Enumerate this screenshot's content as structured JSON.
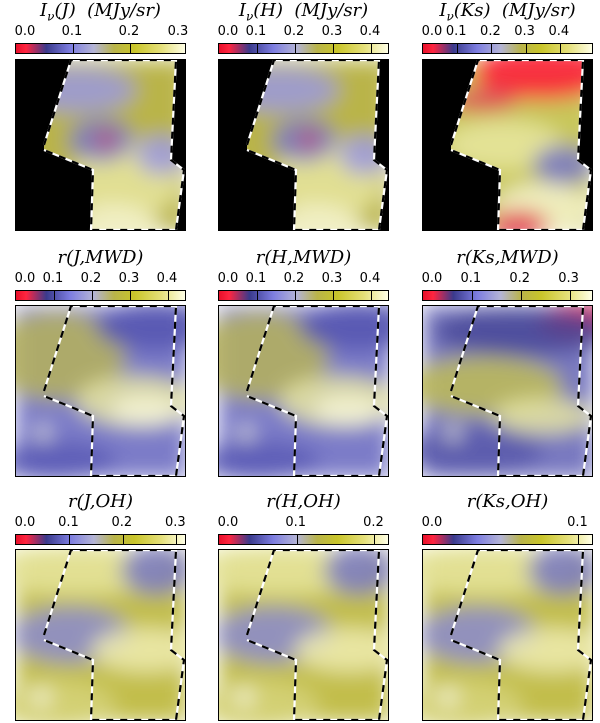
{
  "chart_data": {
    "type": "heatmap",
    "colormap": [
      "#e8102a",
      "#3a3a8c",
      "#7d7de0",
      "#b4b4d6",
      "#c9c52a",
      "#ffffe6"
    ],
    "panels": [
      {
        "title": "I_ν(J)  (MJy/sr)",
        "title_parts": [
          "I",
          "ν",
          "(J)  (MJy/sr)"
        ],
        "ticks": [
          "0.0",
          "0.1",
          "0.2",
          "0.3"
        ],
        "range": [
          0,
          0.3
        ],
        "masked": true,
        "style": "I"
      },
      {
        "title": "I_ν(H)  (MJy/sr)",
        "title_parts": [
          "I",
          "ν",
          "(H)  (MJy/sr)"
        ],
        "ticks": [
          "0.0",
          "0.1",
          "0.2",
          "0.3",
          "0.4"
        ],
        "range": [
          0,
          0.45
        ],
        "masked": true,
        "style": "I"
      },
      {
        "title": "I_ν(Ks)  (MJy/sr)",
        "title_parts": [
          "I",
          "ν",
          "(Ks)  (MJy/sr)"
        ],
        "ticks": [
          "0.0",
          "0.1",
          "0.2",
          "0.3",
          "0.4"
        ],
        "range": [
          0,
          0.5
        ],
        "masked": true,
        "style": "IK"
      },
      {
        "title": "r(J,MWD)",
        "ticks": [
          "0.0",
          "0.1",
          "0.2",
          "0.3",
          "0.4"
        ],
        "range": [
          0,
          0.45
        ],
        "masked": false,
        "style": "M"
      },
      {
        "title": "r(H,MWD)",
        "ticks": [
          "0.0",
          "0.1",
          "0.2",
          "0.3",
          "0.4"
        ],
        "range": [
          0,
          0.45
        ],
        "masked": false,
        "style": "M"
      },
      {
        "title": "r(Ks,MWD)",
        "ticks": [
          "0.0",
          "0.1",
          "0.2",
          "0.3"
        ],
        "range": [
          0,
          0.35
        ],
        "masked": false,
        "style": "MK"
      },
      {
        "title": "r(J,OH)",
        "ticks": [
          "0.0",
          "0.1",
          "0.2",
          "0.3"
        ],
        "range": [
          0,
          0.32
        ],
        "masked": false,
        "style": "O"
      },
      {
        "title": "r(H,OH)",
        "ticks": [
          "0.0",
          "0.1",
          "0.2"
        ],
        "range": [
          0,
          0.22
        ],
        "masked": false,
        "style": "O"
      },
      {
        "title": "r(Ks,OH)",
        "ticks": [
          "0.0",
          "0.1"
        ],
        "range": [
          0,
          0.11
        ],
        "masked": false,
        "style": "O"
      }
    ]
  }
}
